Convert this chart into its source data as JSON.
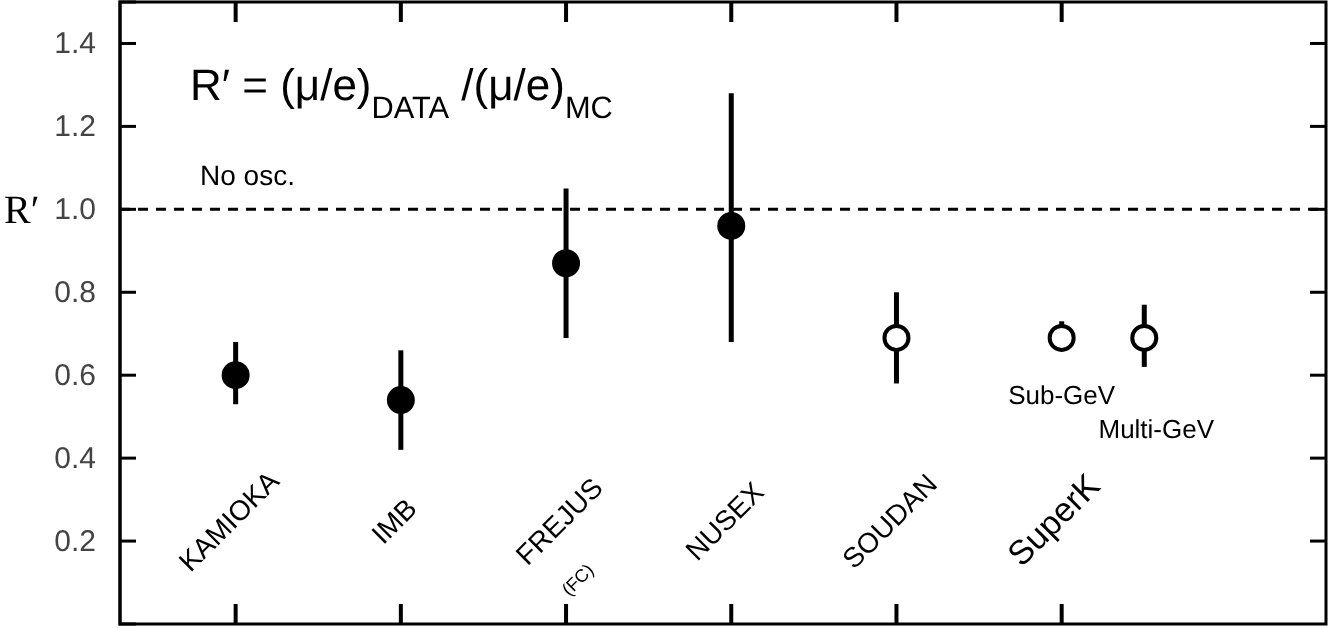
{
  "chart_data": {
    "type": "scatter",
    "ylabel": "R′",
    "annotations": [
      "R′ = (μ/e)$_{DATA}$ /(μ/e)$_{MC}$",
      "(FC)"
    ],
    "categories": [
      "KAMIOKA",
      null,
      "IMB",
      null,
      "FREJUS",
      null,
      "NUSEX",
      null,
      "SOUDAN",
      null,
      "SuperK",
      null
    ],
    "ylim": [
      0,
      1.5
    ],
    "yticks": [
      0.2,
      0.4,
      0.6,
      0.8,
      {
        "value": 1.0,
        "label": "1.0"
      },
      1.2,
      1.4
    ],
    "grid": false,
    "marker": "circle",
    "ref_lines": [
      {
        "axis": "y",
        "value": 1.0,
        "label": "No osc.",
        "line_style": "dashed",
        "color": "#000000"
      }
    ],
    "series": [
      {
        "color": "#000000",
        "values": [
          0.6,
          null,
          0.54,
          null,
          0.87,
          null,
          0.96,
          null,
          null,
          null,
          null,
          null
        ],
        "errors": [
          [
            0.53,
            0.68
          ],
          null,
          [
            0.42,
            0.66
          ],
          null,
          [
            0.69,
            1.05
          ],
          null,
          [
            0.68,
            1.28
          ],
          null,
          null,
          null,
          null,
          null
        ]
      },
      {
        "color": "#ffffff",
        "values": [
          null,
          null,
          null,
          null,
          null,
          null,
          null,
          null,
          0.69,
          null,
          null,
          null
        ],
        "errors": [
          null,
          null,
          null,
          null,
          null,
          null,
          null,
          null,
          [
            0.58,
            0.8
          ],
          null,
          null,
          null
        ]
      },
      {
        "name": "Sub-GeV",
        "color": "#ffffff",
        "values": [
          null,
          null,
          null,
          null,
          null,
          null,
          null,
          null,
          null,
          null,
          0.69,
          null
        ],
        "errors": [
          null,
          null,
          null,
          null,
          null,
          null,
          null,
          null,
          null,
          null,
          [
            0.66,
            0.73
          ],
          null
        ]
      },
      {
        "name": "Multi-GeV",
        "color": "#ffffff",
        "values": [
          null,
          null,
          null,
          null,
          null,
          null,
          null,
          null,
          null,
          null,
          null,
          0.69
        ],
        "errors": [
          null,
          null,
          null,
          null,
          null,
          null,
          null,
          null,
          null,
          null,
          null,
          [
            0.62,
            0.77
          ]
        ]
      }
    ]
  }
}
